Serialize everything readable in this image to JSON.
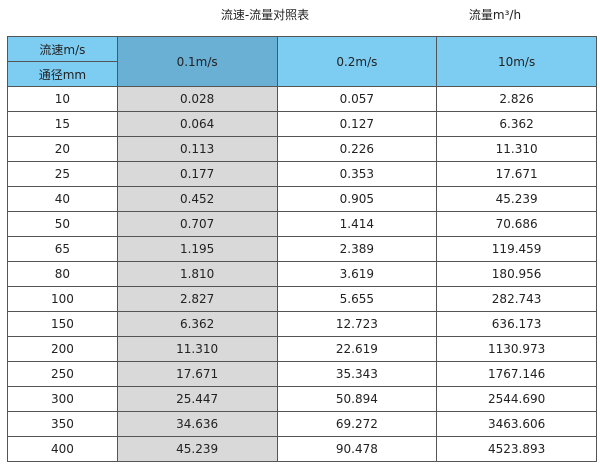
{
  "title": "流速-流量对照表",
  "unit_label": "流量m³/h",
  "header": {
    "speed_label": "流速m/s",
    "diameter_label": "通径mm",
    "columns": [
      "0.1m/s",
      "0.2m/s",
      "10m/s"
    ]
  },
  "colors": {
    "header": "#7dcdf3",
    "header_selected": "#6aafd4",
    "highlight_column": "#d9d9d9"
  },
  "rows": [
    [
      "10",
      "0.028",
      "0.057",
      "2.826"
    ],
    [
      "15",
      "0.064",
      "0.127",
      "6.362"
    ],
    [
      "20",
      "0.113",
      "0.226",
      "11.310"
    ],
    [
      "25",
      "0.177",
      "0.353",
      "17.671"
    ],
    [
      "40",
      "0.452",
      "0.905",
      "45.239"
    ],
    [
      "50",
      "0.707",
      "1.414",
      "70.686"
    ],
    [
      "65",
      "1.195",
      "2.389",
      "119.459"
    ],
    [
      "80",
      "1.810",
      "3.619",
      "180.956"
    ],
    [
      "100",
      "2.827",
      "5.655",
      "282.743"
    ],
    [
      "150",
      "6.362",
      "12.723",
      "636.173"
    ],
    [
      "200",
      "11.310",
      "22.619",
      "1130.973"
    ],
    [
      "250",
      "17.671",
      "35.343",
      "1767.146"
    ],
    [
      "300",
      "25.447",
      "50.894",
      "2544.690"
    ],
    [
      "350",
      "34.636",
      "69.272",
      "3463.606"
    ],
    [
      "400",
      "45.239",
      "90.478",
      "4523.893"
    ]
  ]
}
